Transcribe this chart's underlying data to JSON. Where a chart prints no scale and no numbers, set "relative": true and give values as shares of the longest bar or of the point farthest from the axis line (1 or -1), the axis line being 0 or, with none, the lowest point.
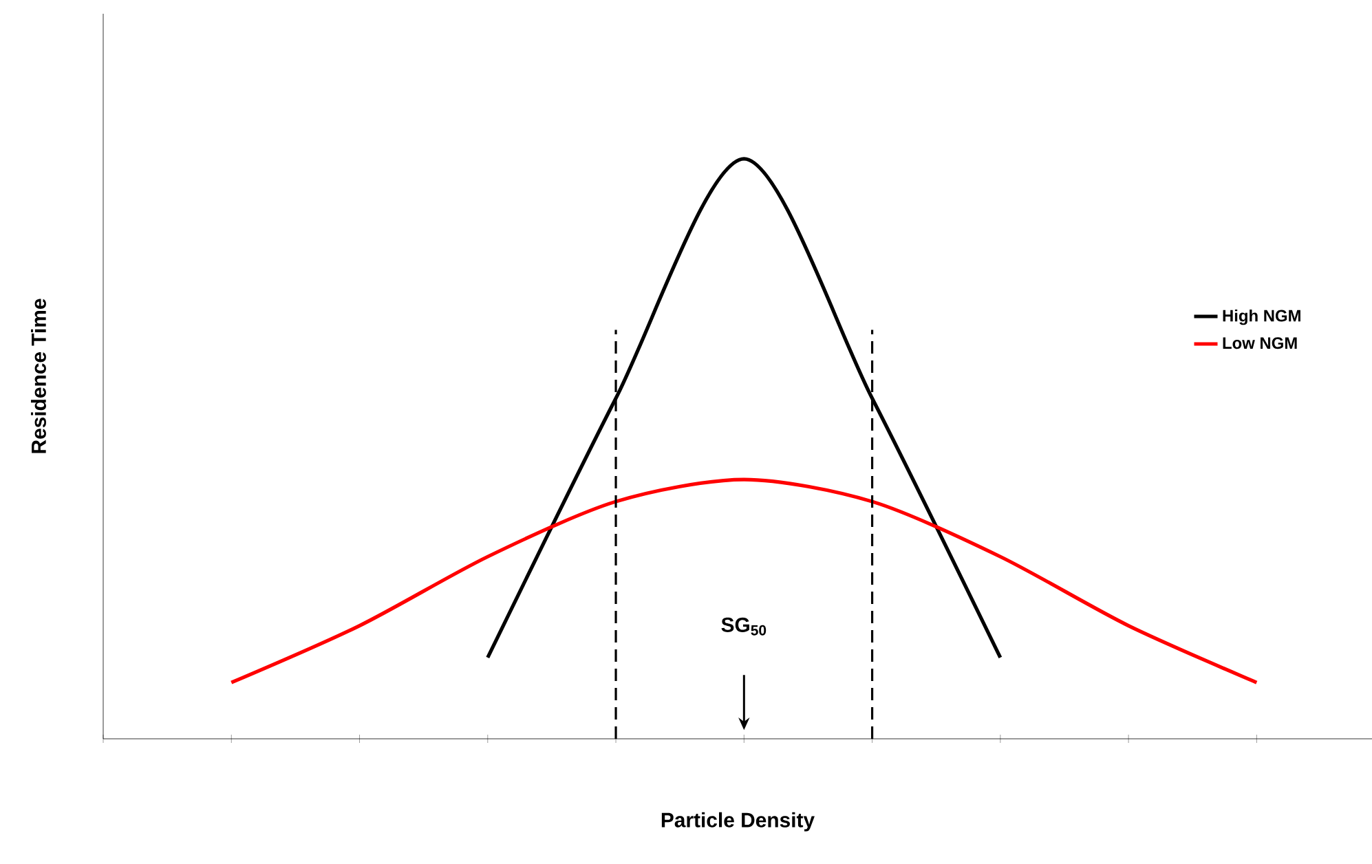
{
  "chart_data": {
    "type": "line",
    "relative": true,
    "xlabel": "Particle Density",
    "ylabel": "Residence Time",
    "categories": [
      null,
      null,
      null,
      null,
      null,
      null,
      null,
      null,
      null,
      null
    ],
    "series": [
      {
        "name": "High NGM",
        "color": "#000000",
        "values": [
          null,
          null,
          null,
          0.14,
          0.587,
          1.0,
          0.587,
          0.14,
          null,
          null
        ]
      },
      {
        "name": "Low NGM",
        "color": "#ff0000",
        "values": [
          null,
          0.097,
          0.195,
          0.314,
          0.409,
          0.447,
          0.409,
          0.314,
          0.195,
          0.097
        ]
      }
    ],
    "annotations": [
      "SG$_{50}$"
    ],
    "legend": "right",
    "marker": "none",
    "line_style": "solid"
  }
}
